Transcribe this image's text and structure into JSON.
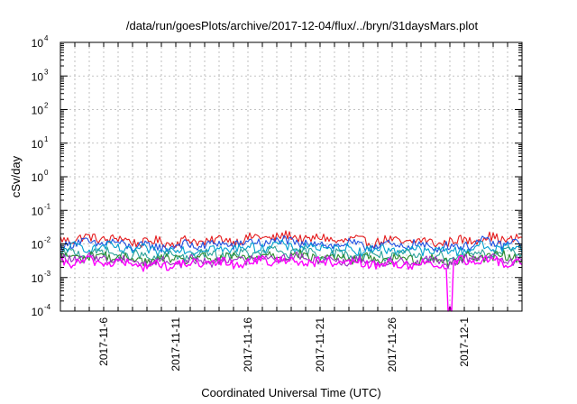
{
  "chart_data": {
    "type": "line",
    "title": "/data/run/goesPlots/archive/2017-12-04/flux/../bryn/31daysMars.plot",
    "xlabel": "Coordinated Universal Time (UTC)",
    "ylabel": "cSv/day",
    "yscale": "log",
    "ylim": [
      0.0001,
      10000
    ],
    "yticks": [
      {
        "base": "10",
        "exp": "-4"
      },
      {
        "base": "10",
        "exp": "-3"
      },
      {
        "base": "10",
        "exp": "-2"
      },
      {
        "base": "10",
        "exp": "-1"
      },
      {
        "base": "10",
        "exp": "0"
      },
      {
        "base": "10",
        "exp": "1"
      },
      {
        "base": "10",
        "exp": "2"
      },
      {
        "base": "10",
        "exp": "3"
      },
      {
        "base": "10",
        "exp": "4"
      }
    ],
    "xlim": [
      "2017-11-03",
      "2017-12-05"
    ],
    "xticks": [
      "2017-11-6",
      "2017-11-11",
      "2017-11-16",
      "2017-11-21",
      "2017-11-26",
      "2017-12-1"
    ],
    "grid": true,
    "legend": "none",
    "series": [
      {
        "color": "#e41a1c",
        "level_center": 0.014,
        "points": [
          [
            "2017-11-03",
            0.014
          ],
          [
            "2017-11-06",
            0.015
          ],
          [
            "2017-11-09",
            0.011
          ],
          [
            "2017-11-12",
            0.012
          ],
          [
            "2017-11-15",
            0.013
          ],
          [
            "2017-11-18",
            0.017
          ],
          [
            "2017-11-21",
            0.014
          ],
          [
            "2017-11-24",
            0.012
          ],
          [
            "2017-11-27",
            0.012
          ],
          [
            "2017-11-30",
            0.011
          ],
          [
            "2017-12-02",
            0.015
          ],
          [
            "2017-12-05",
            0.014
          ]
        ]
      },
      {
        "color": "#1f4fe0",
        "level_center": 0.01,
        "points": [
          [
            "2017-11-03",
            0.01
          ],
          [
            "2017-11-06",
            0.011
          ],
          [
            "2017-11-09",
            0.008
          ],
          [
            "2017-11-12",
            0.009
          ],
          [
            "2017-11-15",
            0.01
          ],
          [
            "2017-11-18",
            0.012
          ],
          [
            "2017-11-21",
            0.01
          ],
          [
            "2017-11-24",
            0.009
          ],
          [
            "2017-11-27",
            0.009
          ],
          [
            "2017-11-30",
            0.008
          ],
          [
            "2017-12-02",
            0.011
          ],
          [
            "2017-12-05",
            0.01
          ]
        ]
      },
      {
        "color": "#00a0d0",
        "level_center": 0.0075,
        "points": [
          [
            "2017-11-03",
            0.0075
          ],
          [
            "2017-11-06",
            0.008
          ],
          [
            "2017-11-09",
            0.0062
          ],
          [
            "2017-11-12",
            0.0068
          ],
          [
            "2017-11-15",
            0.0072
          ],
          [
            "2017-11-18",
            0.009
          ],
          [
            "2017-11-21",
            0.0075
          ],
          [
            "2017-11-24",
            0.0068
          ],
          [
            "2017-11-27",
            0.0068
          ],
          [
            "2017-11-30",
            0.006
          ],
          [
            "2017-12-02",
            0.008
          ],
          [
            "2017-12-05",
            0.0075
          ]
        ]
      },
      {
        "color": "#2aa198",
        "level_center": 0.005,
        "points": [
          [
            "2017-11-03",
            0.005
          ],
          [
            "2017-11-06",
            0.0055
          ],
          [
            "2017-11-09",
            0.004
          ],
          [
            "2017-11-12",
            0.0045
          ],
          [
            "2017-11-15",
            0.0048
          ],
          [
            "2017-11-18",
            0.006
          ],
          [
            "2017-11-21",
            0.005
          ],
          [
            "2017-11-24",
            0.0045
          ],
          [
            "2017-11-27",
            0.0045
          ],
          [
            "2017-11-30",
            0.004
          ],
          [
            "2017-12-02",
            0.0055
          ],
          [
            "2017-12-05",
            0.005
          ]
        ]
      },
      {
        "color": "#2e8b2e",
        "level_center": 0.004,
        "points": [
          [
            "2017-11-03",
            0.004
          ],
          [
            "2017-11-06",
            0.0044
          ],
          [
            "2017-11-09",
            0.0032
          ],
          [
            "2017-11-12",
            0.0036
          ],
          [
            "2017-11-15",
            0.0038
          ],
          [
            "2017-11-18",
            0.0048
          ],
          [
            "2017-11-21",
            0.004
          ],
          [
            "2017-11-24",
            0.0036
          ],
          [
            "2017-11-27",
            0.0036
          ],
          [
            "2017-11-30",
            0.0032
          ],
          [
            "2017-12-02",
            0.0044
          ],
          [
            "2017-12-05",
            0.004
          ]
        ]
      },
      {
        "color": "#9b30c0",
        "level_center": 0.0035,
        "points": [
          [
            "2017-11-03",
            0.0035
          ],
          [
            "2017-11-06",
            0.0038
          ],
          [
            "2017-11-09",
            0.0028
          ],
          [
            "2017-11-12",
            0.003
          ],
          [
            "2017-11-15",
            0.0033
          ],
          [
            "2017-11-18",
            0.0042
          ],
          [
            "2017-11-21",
            0.0035
          ],
          [
            "2017-11-24",
            0.0031
          ],
          [
            "2017-11-27",
            0.0031
          ],
          [
            "2017-11-30",
            0.0028
          ],
          [
            "2017-12-02",
            0.0038
          ],
          [
            "2017-12-05",
            0.0035
          ]
        ]
      },
      {
        "color": "#ff00ff",
        "level_center": 0.0028,
        "points": [
          [
            "2017-11-03",
            0.0028
          ],
          [
            "2017-11-06",
            0.003
          ],
          [
            "2017-11-09",
            0.0022
          ],
          [
            "2017-11-12",
            0.0025
          ],
          [
            "2017-11-15",
            0.0027
          ],
          [
            "2017-11-18",
            0.0033
          ],
          [
            "2017-11-21",
            0.0028
          ],
          [
            "2017-11-24",
            0.0025
          ],
          [
            "2017-11-27",
            0.0025
          ],
          [
            "2017-11-30",
            0.0001
          ],
          [
            "2017-12-02",
            0.003
          ],
          [
            "2017-12-05",
            0.0028
          ]
        ]
      }
    ]
  }
}
